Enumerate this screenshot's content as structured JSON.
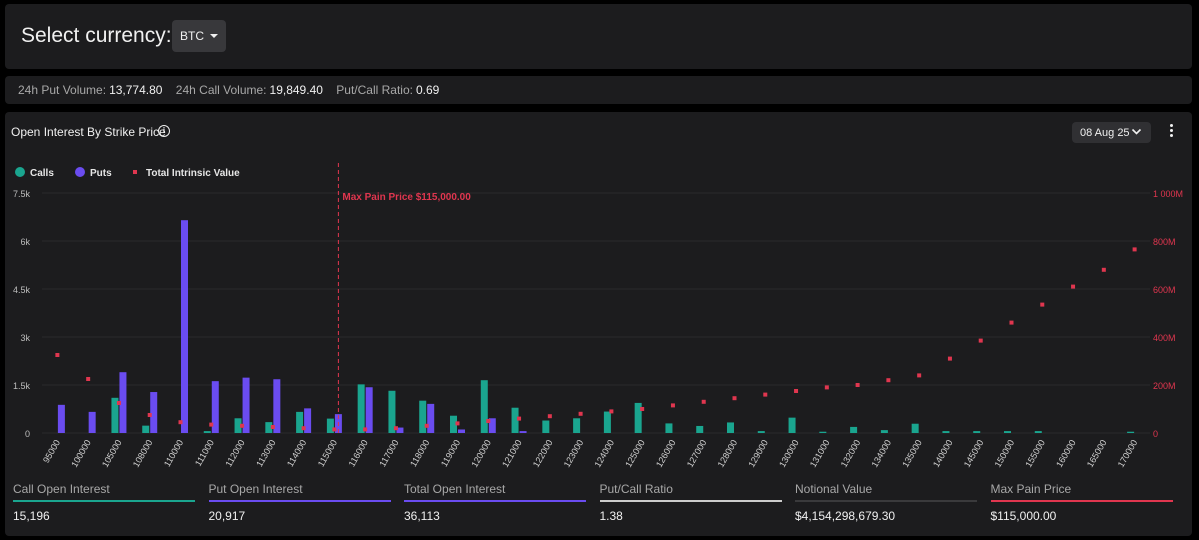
{
  "header": {
    "select_label": "Select currency:",
    "currency": "BTC"
  },
  "stats": {
    "put_volume_label": "24h Put Volume:",
    "put_volume": "13,774.80",
    "call_volume_label": "24h Call Volume:",
    "call_volume": "19,849.40",
    "ratio_label": "Put/Call Ratio:",
    "ratio": "0.69"
  },
  "panel": {
    "title": "Open Interest By Strike Price",
    "date": "08 Aug 25"
  },
  "colors": {
    "calls": "#1aa58f",
    "puts": "#6a4cf0",
    "intrinsic": "#e0364f",
    "ratio_line": "#cccccc",
    "notional_line": "#3a3a3c"
  },
  "chart_data": {
    "type": "bar",
    "legend": [
      "Calls",
      "Puts",
      "Total Intrinsic Value"
    ],
    "legend_position": "top-left",
    "categories": [
      "95000",
      "100000",
      "105000",
      "108000",
      "110000",
      "111000",
      "112000",
      "113000",
      "114000",
      "115000",
      "116000",
      "117000",
      "118000",
      "119000",
      "120000",
      "121000",
      "122000",
      "123000",
      "124000",
      "125000",
      "126000",
      "127000",
      "128000",
      "129000",
      "130000",
      "131000",
      "132000",
      "134000",
      "135000",
      "140000",
      "145000",
      "150000",
      "155000",
      "160000",
      "165000",
      "170000"
    ],
    "series": [
      {
        "name": "Calls",
        "axis": "left",
        "values": [
          0,
          0,
          1100,
          230,
          0,
          60,
          460,
          340,
          660,
          450,
          1520,
          1320,
          1010,
          540,
          1650,
          790,
          390,
          460,
          670,
          940,
          300,
          220,
          330,
          60,
          480,
          40,
          190,
          90,
          290,
          60,
          60,
          60,
          60,
          0,
          0,
          40
        ]
      },
      {
        "name": "Puts",
        "axis": "left",
        "values": [
          880,
          660,
          1900,
          1280,
          6650,
          1620,
          1730,
          1680,
          770,
          590,
          1430,
          170,
          910,
          110,
          460,
          60,
          0,
          0,
          0,
          0,
          0,
          0,
          0,
          0,
          0,
          0,
          0,
          0,
          0,
          0,
          0,
          0,
          0,
          0,
          0,
          0
        ]
      },
      {
        "name": "Total Intrinsic Value",
        "axis": "right",
        "type": "scatter",
        "values": [
          325,
          225,
          125,
          75,
          45,
          35,
          30,
          25,
          20,
          15,
          15,
          20,
          30,
          40,
          50,
          60,
          70,
          80,
          90,
          100,
          115,
          130,
          145,
          160,
          175,
          190,
          200,
          220,
          240,
          310,
          385,
          460,
          535,
          610,
          680,
          765
        ]
      }
    ],
    "y_left": {
      "ticks": [
        "0",
        "1.5k",
        "3k",
        "4.5k",
        "6k",
        "7.5k"
      ],
      "min": 0,
      "max": 7500
    },
    "y_right": {
      "ticks": [
        "0",
        "200M",
        "400M",
        "600M",
        "800M",
        "1 000M"
      ],
      "min": 0,
      "max": 1000
    },
    "annotation": {
      "label": "Max Pain Price $115,000.00",
      "category": "115000"
    },
    "grid": true
  },
  "bottom": [
    {
      "label": "Call Open Interest",
      "value": "15,196",
      "color": "#1aa58f"
    },
    {
      "label": "Put Open Interest",
      "value": "20,917",
      "color": "#6a4cf0"
    },
    {
      "label": "Total Open Interest",
      "value": "36,113",
      "color": "#6a4cf0"
    },
    {
      "label": "Put/Call Ratio",
      "value": "1.38",
      "color": "#cccccc"
    },
    {
      "label": "Notional Value",
      "value": "$4,154,298,679.30",
      "color": "#3a3a3c"
    },
    {
      "label": "Max Pain Price",
      "value": "$115,000.00",
      "color": "#e0364f"
    }
  ]
}
